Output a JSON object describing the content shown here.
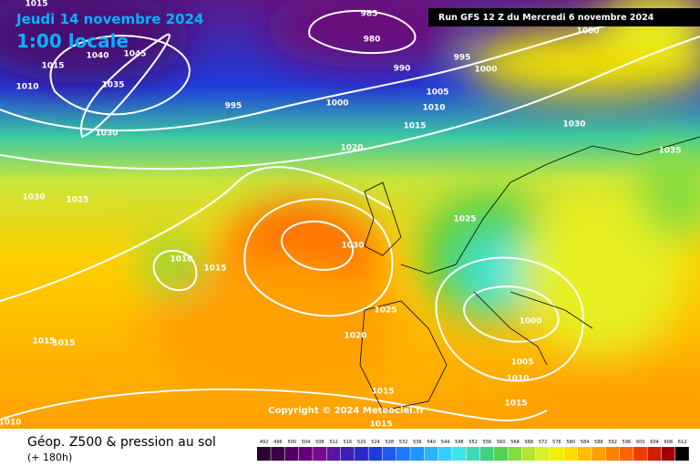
{
  "header": {
    "date": "Jeudi 14 novembre 2024",
    "time": "1:00 locale",
    "run": "Run GFS 12 Z du Mercredi 6 novembre 2024"
  },
  "copyright": "Copyright © 2024 Meteociel.fr",
  "isobar_labels": [
    "1015",
    "1015",
    "1010",
    "1040",
    "1045",
    "1035",
    "1030",
    "985",
    "980",
    "990",
    "995",
    "1000",
    "1000",
    "995",
    "1000",
    "1005",
    "1010",
    "1015",
    "1020",
    "1030",
    "1035",
    "1030",
    "1025",
    "1025",
    "1030",
    "1010",
    "1015",
    "1025",
    "1020",
    "1015",
    "1015",
    "1000",
    "1005",
    "1010",
    "1015",
    "1015",
    "1015",
    "1010"
  ],
  "footer": {
    "title": "Géop. Z500 & pression au sol",
    "lead": "(+ 180h)"
  },
  "legend": {
    "values": [
      492,
      496,
      500,
      504,
      508,
      512,
      516,
      520,
      524,
      528,
      532,
      536,
      540,
      544,
      548,
      552,
      556,
      560,
      564,
      568,
      572,
      576,
      580,
      584,
      588,
      592,
      596,
      600,
      604,
      608,
      612
    ],
    "colors": [
      "#2a0030",
      "#3c0048",
      "#500060",
      "#640078",
      "#780a8c",
      "#5a14a0",
      "#3c1eb4",
      "#2828c8",
      "#1e3cdc",
      "#1e5af0",
      "#1e78ff",
      "#1e96ff",
      "#28b4ff",
      "#32d2ff",
      "#3ce6e6",
      "#3cdcb4",
      "#3cd282",
      "#50d250",
      "#82dc3c",
      "#b4e632",
      "#dcf028",
      "#f0f000",
      "#ffdc00",
      "#ffbe00",
      "#ffa000",
      "#ff8200",
      "#ff6400",
      "#f03c00",
      "#d21e00",
      "#a00000",
      "#000000"
    ]
  }
}
